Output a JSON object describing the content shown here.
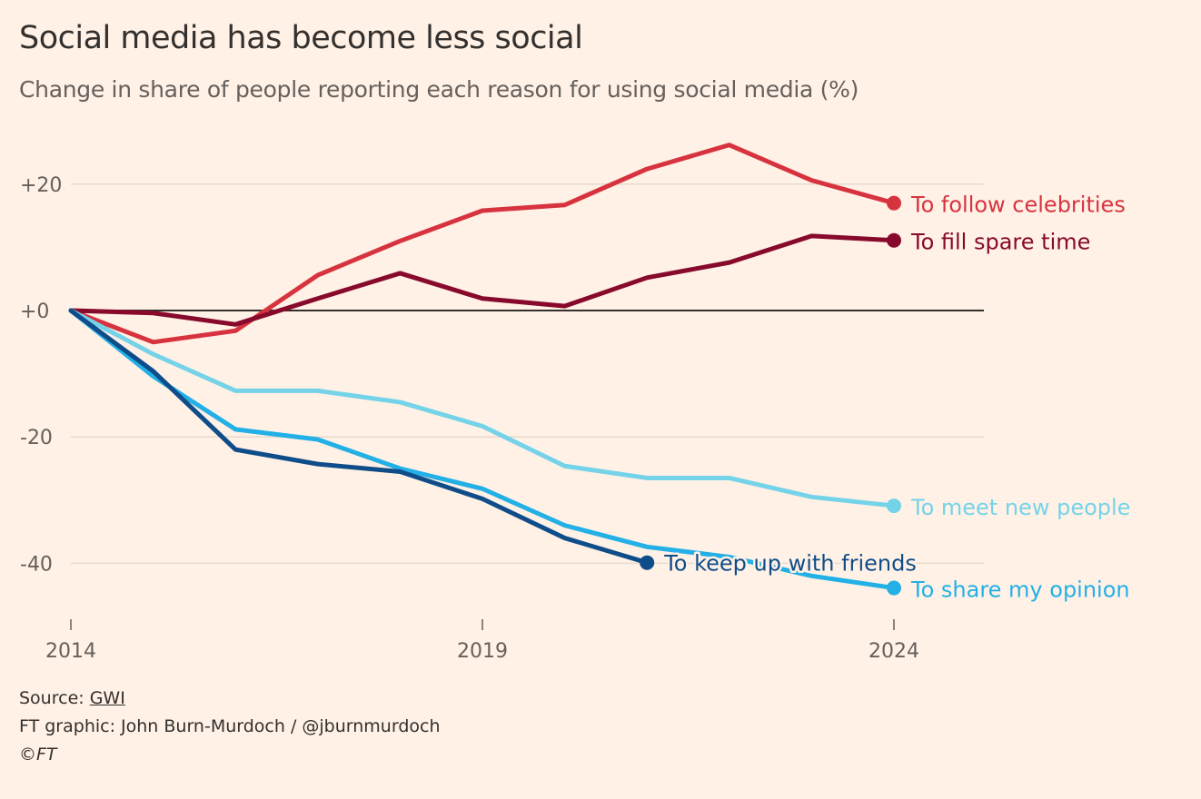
{
  "chart_data": {
    "type": "line",
    "title": "Social media has become less social",
    "subtitle": "Change in share of people reporting each reason for using social media (%)",
    "x": [
      2014,
      2015,
      2016,
      2017,
      2018,
      2019,
      2020,
      2021,
      2022,
      2023,
      2024
    ],
    "xticks": [
      2014,
      2019,
      2024
    ],
    "xtick_labels": [
      "2014",
      "2019",
      "2024"
    ],
    "yticks": [
      20,
      0,
      -20,
      -40
    ],
    "ytick_labels": [
      "+20",
      "+0",
      "-20",
      "-40"
    ],
    "xlim": [
      2014,
      2025.1
    ],
    "ylim": [
      -48,
      28
    ],
    "grid": "horizontal",
    "legend": "direct labels at line ends",
    "series": [
      {
        "name": "To follow celebrities",
        "color": "#d7333f",
        "values": [
          0,
          -5,
          -3.2,
          5.6,
          11,
          15.8,
          16.7,
          22.4,
          26.2,
          20.6,
          17
        ]
      },
      {
        "name": "To fill spare time",
        "color": "#870a2c",
        "values": [
          0,
          -0.4,
          -2.2,
          1.9,
          5.9,
          1.9,
          0.7,
          5.2,
          7.6,
          11.8,
          11.1
        ]
      },
      {
        "name": "To meet new people",
        "color": "#75d3e9",
        "values": [
          0,
          -6.9,
          -12.7,
          -12.7,
          -14.5,
          -18.3,
          -24.6,
          -26.5,
          -26.5,
          -29.5,
          -30.9
        ]
      },
      {
        "name": "To share my opinion",
        "color": "#22b0e6",
        "values": [
          0,
          -10.4,
          -18.8,
          -20.4,
          -25,
          -28.2,
          -34,
          -37.4,
          -39,
          -42,
          -43.9
        ]
      },
      {
        "name": "To keep up with friends",
        "color": "#0f4d8a",
        "values": [
          0,
          -9.6,
          -22,
          -24.3,
          -25.5,
          -29.8,
          -36,
          -39.9,
          null,
          null,
          null
        ]
      }
    ]
  },
  "footer": {
    "source_prefix": "Source: ",
    "source_link": "GWI",
    "credit": "FT graphic: John Burn-Murdoch / @jburnmurdoch",
    "copyright": "©FT"
  },
  "colors": {
    "background": "#fff1e5",
    "text": "#33302e",
    "muted": "#66605c"
  }
}
